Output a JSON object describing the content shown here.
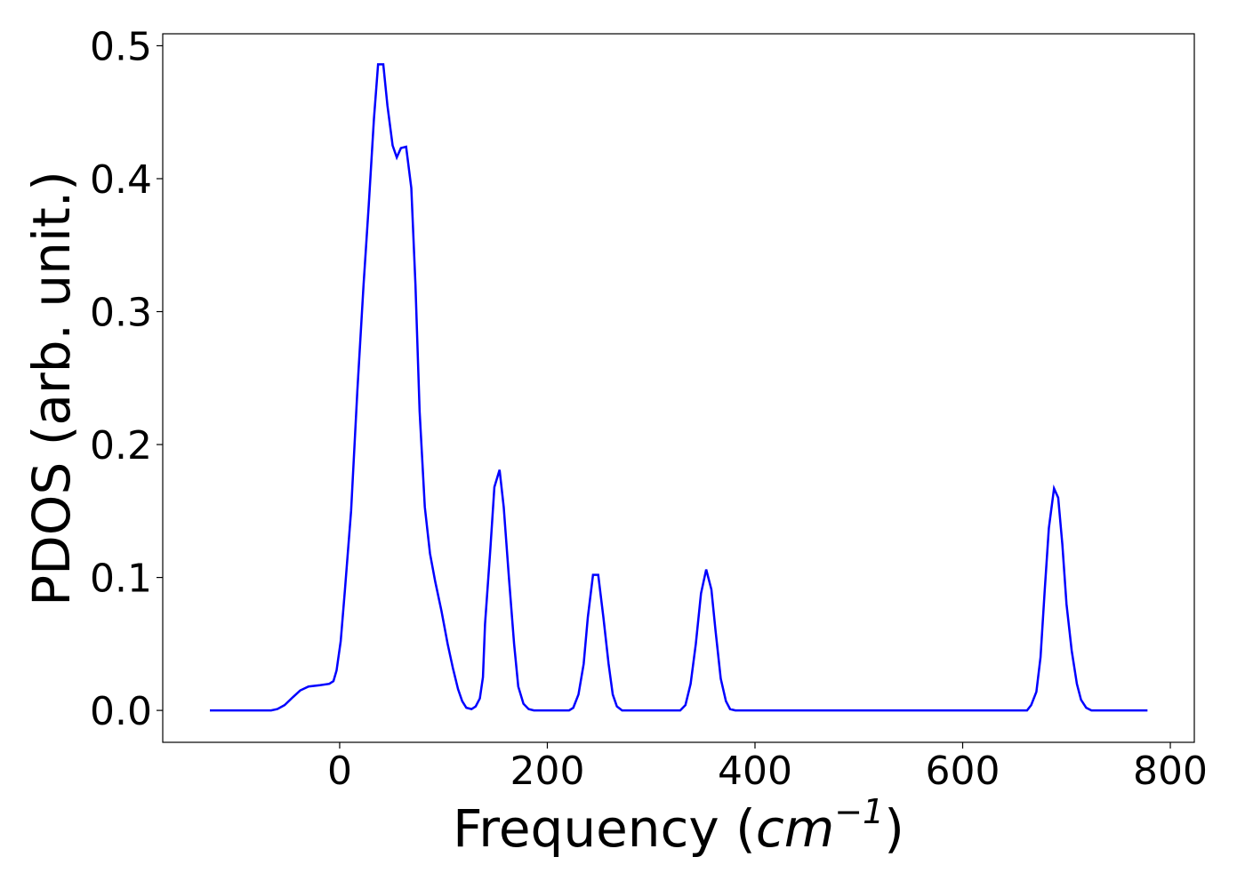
{
  "chart_data": {
    "type": "line",
    "xlabel": [
      "Frequency (",
      "cm",
      "−1",
      ")"
    ],
    "ylabel": "PDOS (arb. unit.)",
    "xlim": [
      -170.4,
      823.1
    ],
    "ylim": [
      -0.024,
      0.509
    ],
    "xticks": [
      0,
      200,
      400,
      600,
      800
    ],
    "yticks": [
      {
        "value": 0,
        "label": "0.0"
      },
      0.1,
      0.2,
      0.3,
      0.4,
      0.5
    ],
    "grid": false,
    "series": [
      {
        "color": "#0000ff",
        "x": [
          -125,
          -66,
          -60,
          -53,
          -45,
          -38,
          -30,
          -19,
          -10,
          -6,
          -3,
          1,
          5,
          11,
          17,
          23,
          28,
          33,
          37,
          42,
          46,
          51,
          55,
          59,
          64,
          69,
          73,
          77,
          82,
          87,
          92,
          98,
          104,
          109,
          114,
          118,
          122,
          127,
          131,
          135,
          138,
          140,
          145,
          149,
          154,
          158,
          163,
          168,
          172,
          177,
          182,
          187,
          221,
          225,
          230,
          235,
          239,
          244,
          249,
          254,
          259,
          263,
          267,
          272,
          328,
          333,
          338,
          343,
          348,
          353,
          358,
          362,
          367,
          372,
          376,
          381,
          662,
          666,
          671,
          675,
          679,
          683,
          688,
          692,
          696,
          700,
          705,
          710,
          714,
          719,
          724,
          778
        ],
        "values": [
          0,
          0,
          0.001,
          0.004,
          0.01,
          0.015,
          0.018,
          0.019,
          0.02,
          0.022,
          0.03,
          0.052,
          0.09,
          0.15,
          0.24,
          0.32,
          0.38,
          0.445,
          0.486,
          0.486,
          0.455,
          0.425,
          0.416,
          0.423,
          0.424,
          0.393,
          0.32,
          0.225,
          0.153,
          0.118,
          0.097,
          0.075,
          0.05,
          0.032,
          0.016,
          0.007,
          0.002,
          0.001,
          0.003,
          0.009,
          0.025,
          0.065,
          0.12,
          0.168,
          0.181,
          0.153,
          0.1,
          0.05,
          0.018,
          0.005,
          0.001,
          0,
          0,
          0.002,
          0.012,
          0.035,
          0.07,
          0.102,
          0.102,
          0.07,
          0.035,
          0.012,
          0.003,
          0,
          0,
          0.004,
          0.02,
          0.05,
          0.088,
          0.106,
          0.091,
          0.06,
          0.024,
          0.007,
          0.001,
          0,
          0,
          0.004,
          0.014,
          0.04,
          0.09,
          0.137,
          0.167,
          0.16,
          0.125,
          0.08,
          0.045,
          0.02,
          0.008,
          0.002,
          0,
          0
        ]
      }
    ]
  }
}
